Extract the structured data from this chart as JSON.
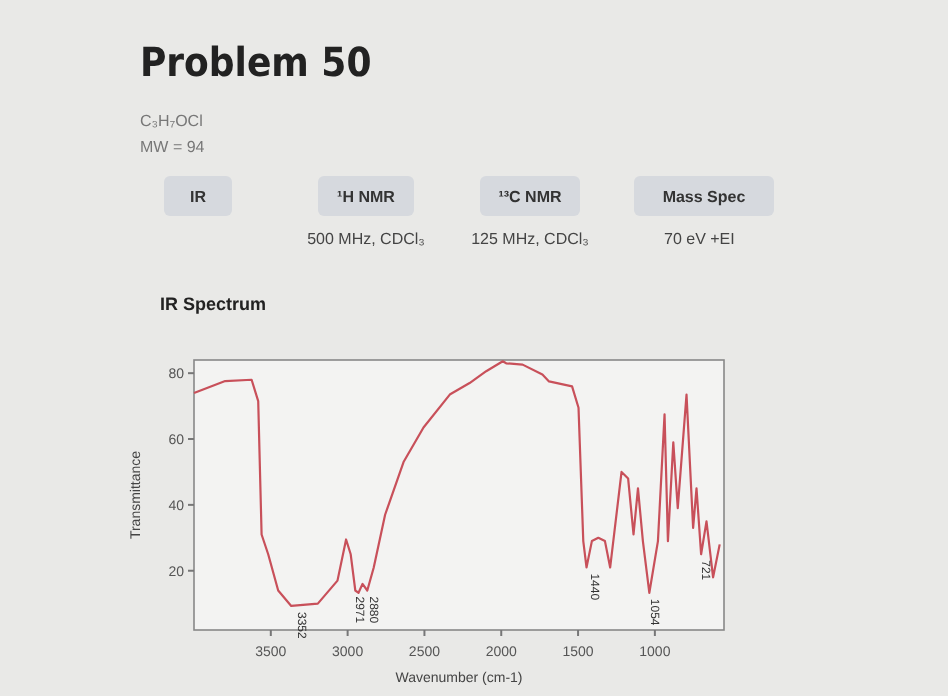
{
  "chart_data": {
    "type": "line",
    "title": "Problem 50",
    "subtitle": "C₃H₇OCl",
    "xlabel": "Wavenumber (cm-1)",
    "ylabel": "Transmittance",
    "x": [
      4000,
      3797,
      3625,
      3582,
      3560,
      3517,
      3452,
      3367,
      3194,
      3066,
      3010,
      2980,
      2950,
      2929,
      2903,
      2872,
      2830,
      2756,
      2636,
      2506,
      2335,
      2206,
      2098,
      1990,
      1968,
      1861,
      1732,
      1689,
      1539,
      1497,
      1466,
      1445,
      1410,
      1368,
      1325,
      1291,
      1217,
      1174,
      1139,
      1110,
      1078,
      1036,
      980,
      937,
      915,
      880,
      851,
      794,
      751,
      729,
      699,
      664,
      621,
      578
    ],
    "series": [
      {
        "color": "#c8505a",
        "values": [
          74,
          77.6,
          78,
          71.5,
          31,
          25,
          14,
          9.3,
          10,
          17,
          29.5,
          25,
          14,
          13.3,
          16,
          14,
          21,
          37,
          53,
          63.5,
          73.5,
          77,
          80.6,
          83.6,
          83,
          82.6,
          79.6,
          77.5,
          76,
          69.5,
          29,
          21,
          29,
          30,
          29,
          21,
          50,
          48,
          31,
          45,
          29,
          13.3,
          29,
          67.5,
          29,
          59,
          39,
          73.5,
          33,
          45,
          25,
          35,
          18,
          28
        ]
      }
    ],
    "xlim": [
      4000,
      550
    ],
    "xticks": [
      3500,
      3000,
      2500,
      2000,
      1500,
      1000
    ],
    "ylim": [
      2,
      84
    ],
    "yticks": [
      20,
      40,
      60,
      80
    ],
    "grid": false,
    "marker": "none",
    "line_style": "solid",
    "annotations": [
      "MW = 94",
      "IR",
      "¹H NMR",
      "¹³C NMR",
      "Mass Spec",
      "500 MHz, CDCl₃",
      "125 MHz, CDCl₃",
      "70 eV +EI",
      "IR Spectrum",
      {
        "text": "3352",
        "x": 3352,
        "y": 9.3
      },
      {
        "text": "2971",
        "x": 2971,
        "y": 14
      },
      {
        "text": "2880",
        "x": 2880,
        "y": 14
      },
      {
        "text": "1440",
        "x": 1440,
        "y": 21
      },
      {
        "text": "1054",
        "x": 1054,
        "y": 13.3
      },
      {
        "text": "721",
        "x": 721,
        "y": 25
      }
    ]
  }
}
